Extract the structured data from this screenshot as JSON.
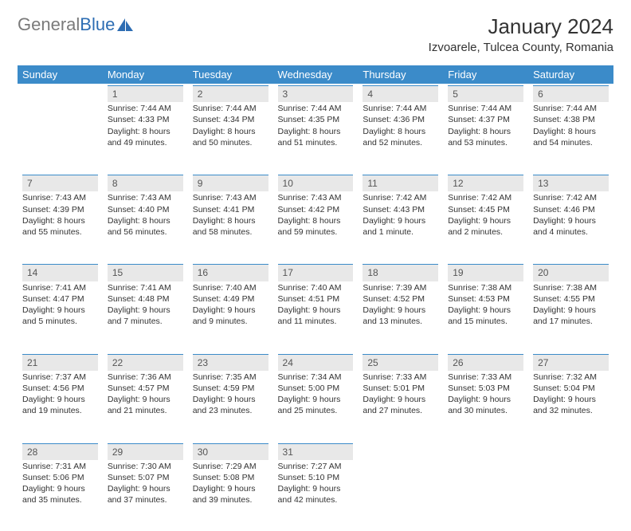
{
  "brand": {
    "part1": "General",
    "part2": "Blue"
  },
  "title": "January 2024",
  "location": "Izvoarele, Tulcea County, Romania",
  "header_bg": "#3b8bc9",
  "daynum_bg": "#e8e8e8",
  "daynum_border": "#3b8bc9",
  "weekdays": [
    "Sunday",
    "Monday",
    "Tuesday",
    "Wednesday",
    "Thursday",
    "Friday",
    "Saturday"
  ],
  "weeks": [
    [
      null,
      {
        "n": "1",
        "sunrise": "7:44 AM",
        "sunset": "4:33 PM",
        "day_h": "8",
        "day_m": "49"
      },
      {
        "n": "2",
        "sunrise": "7:44 AM",
        "sunset": "4:34 PM",
        "day_h": "8",
        "day_m": "50"
      },
      {
        "n": "3",
        "sunrise": "7:44 AM",
        "sunset": "4:35 PM",
        "day_h": "8",
        "day_m": "51"
      },
      {
        "n": "4",
        "sunrise": "7:44 AM",
        "sunset": "4:36 PM",
        "day_h": "8",
        "day_m": "52"
      },
      {
        "n": "5",
        "sunrise": "7:44 AM",
        "sunset": "4:37 PM",
        "day_h": "8",
        "day_m": "53"
      },
      {
        "n": "6",
        "sunrise": "7:44 AM",
        "sunset": "4:38 PM",
        "day_h": "8",
        "day_m": "54"
      }
    ],
    [
      {
        "n": "7",
        "sunrise": "7:43 AM",
        "sunset": "4:39 PM",
        "day_h": "8",
        "day_m": "55"
      },
      {
        "n": "8",
        "sunrise": "7:43 AM",
        "sunset": "4:40 PM",
        "day_h": "8",
        "day_m": "56"
      },
      {
        "n": "9",
        "sunrise": "7:43 AM",
        "sunset": "4:41 PM",
        "day_h": "8",
        "day_m": "58"
      },
      {
        "n": "10",
        "sunrise": "7:43 AM",
        "sunset": "4:42 PM",
        "day_h": "8",
        "day_m": "59"
      },
      {
        "n": "11",
        "sunrise": "7:42 AM",
        "sunset": "4:43 PM",
        "day_h": "9",
        "day_m": "1",
        "singular": true
      },
      {
        "n": "12",
        "sunrise": "7:42 AM",
        "sunset": "4:45 PM",
        "day_h": "9",
        "day_m": "2"
      },
      {
        "n": "13",
        "sunrise": "7:42 AM",
        "sunset": "4:46 PM",
        "day_h": "9",
        "day_m": "4"
      }
    ],
    [
      {
        "n": "14",
        "sunrise": "7:41 AM",
        "sunset": "4:47 PM",
        "day_h": "9",
        "day_m": "5"
      },
      {
        "n": "15",
        "sunrise": "7:41 AM",
        "sunset": "4:48 PM",
        "day_h": "9",
        "day_m": "7"
      },
      {
        "n": "16",
        "sunrise": "7:40 AM",
        "sunset": "4:49 PM",
        "day_h": "9",
        "day_m": "9"
      },
      {
        "n": "17",
        "sunrise": "7:40 AM",
        "sunset": "4:51 PM",
        "day_h": "9",
        "day_m": "11"
      },
      {
        "n": "18",
        "sunrise": "7:39 AM",
        "sunset": "4:52 PM",
        "day_h": "9",
        "day_m": "13"
      },
      {
        "n": "19",
        "sunrise": "7:38 AM",
        "sunset": "4:53 PM",
        "day_h": "9",
        "day_m": "15"
      },
      {
        "n": "20",
        "sunrise": "7:38 AM",
        "sunset": "4:55 PM",
        "day_h": "9",
        "day_m": "17"
      }
    ],
    [
      {
        "n": "21",
        "sunrise": "7:37 AM",
        "sunset": "4:56 PM",
        "day_h": "9",
        "day_m": "19"
      },
      {
        "n": "22",
        "sunrise": "7:36 AM",
        "sunset": "4:57 PM",
        "day_h": "9",
        "day_m": "21"
      },
      {
        "n": "23",
        "sunrise": "7:35 AM",
        "sunset": "4:59 PM",
        "day_h": "9",
        "day_m": "23"
      },
      {
        "n": "24",
        "sunrise": "7:34 AM",
        "sunset": "5:00 PM",
        "day_h": "9",
        "day_m": "25"
      },
      {
        "n": "25",
        "sunrise": "7:33 AM",
        "sunset": "5:01 PM",
        "day_h": "9",
        "day_m": "27"
      },
      {
        "n": "26",
        "sunrise": "7:33 AM",
        "sunset": "5:03 PM",
        "day_h": "9",
        "day_m": "30"
      },
      {
        "n": "27",
        "sunrise": "7:32 AM",
        "sunset": "5:04 PM",
        "day_h": "9",
        "day_m": "32"
      }
    ],
    [
      {
        "n": "28",
        "sunrise": "7:31 AM",
        "sunset": "5:06 PM",
        "day_h": "9",
        "day_m": "35"
      },
      {
        "n": "29",
        "sunrise": "7:30 AM",
        "sunset": "5:07 PM",
        "day_h": "9",
        "day_m": "37"
      },
      {
        "n": "30",
        "sunrise": "7:29 AM",
        "sunset": "5:08 PM",
        "day_h": "9",
        "day_m": "39"
      },
      {
        "n": "31",
        "sunrise": "7:27 AM",
        "sunset": "5:10 PM",
        "day_h": "9",
        "day_m": "42"
      },
      null,
      null,
      null
    ]
  ],
  "labels": {
    "sunrise": "Sunrise:",
    "sunset": "Sunset:",
    "daylight": "Daylight:",
    "hours": "hours",
    "and": "and",
    "minutes": "minutes.",
    "minute": "minute."
  }
}
